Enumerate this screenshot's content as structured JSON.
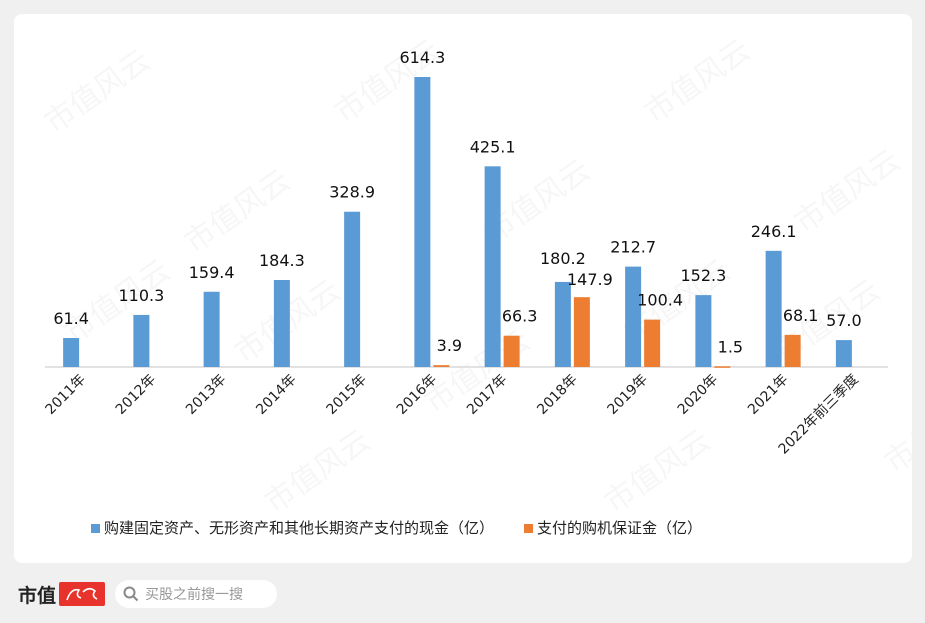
{
  "chart_data": {
    "type": "bar",
    "categories": [
      "2011年",
      "2012年",
      "2013年",
      "2014年",
      "2015年",
      "2016年",
      "2017年",
      "2018年",
      "2019年",
      "2020年",
      "2021年",
      "2022年前三季度"
    ],
    "series": [
      {
        "name": "购建固定资产、无形资产和其他长期资产支付的现金（亿）",
        "color": "#5b9bd5",
        "values": [
          61.4,
          110.3,
          159.4,
          184.3,
          328.9,
          614.3,
          425.1,
          180.2,
          212.7,
          152.3,
          246.1,
          57.0
        ],
        "labels": [
          "61.4",
          "110.3",
          "159.4",
          "184.3",
          "328.9",
          "614.3",
          "425.1",
          "180.2",
          "212.7",
          "152.3",
          "246.1",
          "57.0"
        ]
      },
      {
        "name": "支付的购机保证金（亿）",
        "color": "#ed7d31",
        "values": [
          null,
          null,
          null,
          null,
          null,
          3.9,
          66.3,
          147.9,
          100.4,
          1.5,
          68.1,
          null
        ],
        "labels": [
          null,
          null,
          null,
          null,
          null,
          "3.9",
          "66.3",
          "147.9",
          "100.4",
          "1.5",
          "68.1",
          null
        ]
      }
    ],
    "ylim": [
      0,
      614.3
    ],
    "grid": false,
    "legend": "bottom"
  },
  "watermark": "市值风云",
  "footer": {
    "logo": "市值风云",
    "search_placeholder": "买股之前搜一搜",
    "search_icon": "search-icon"
  }
}
